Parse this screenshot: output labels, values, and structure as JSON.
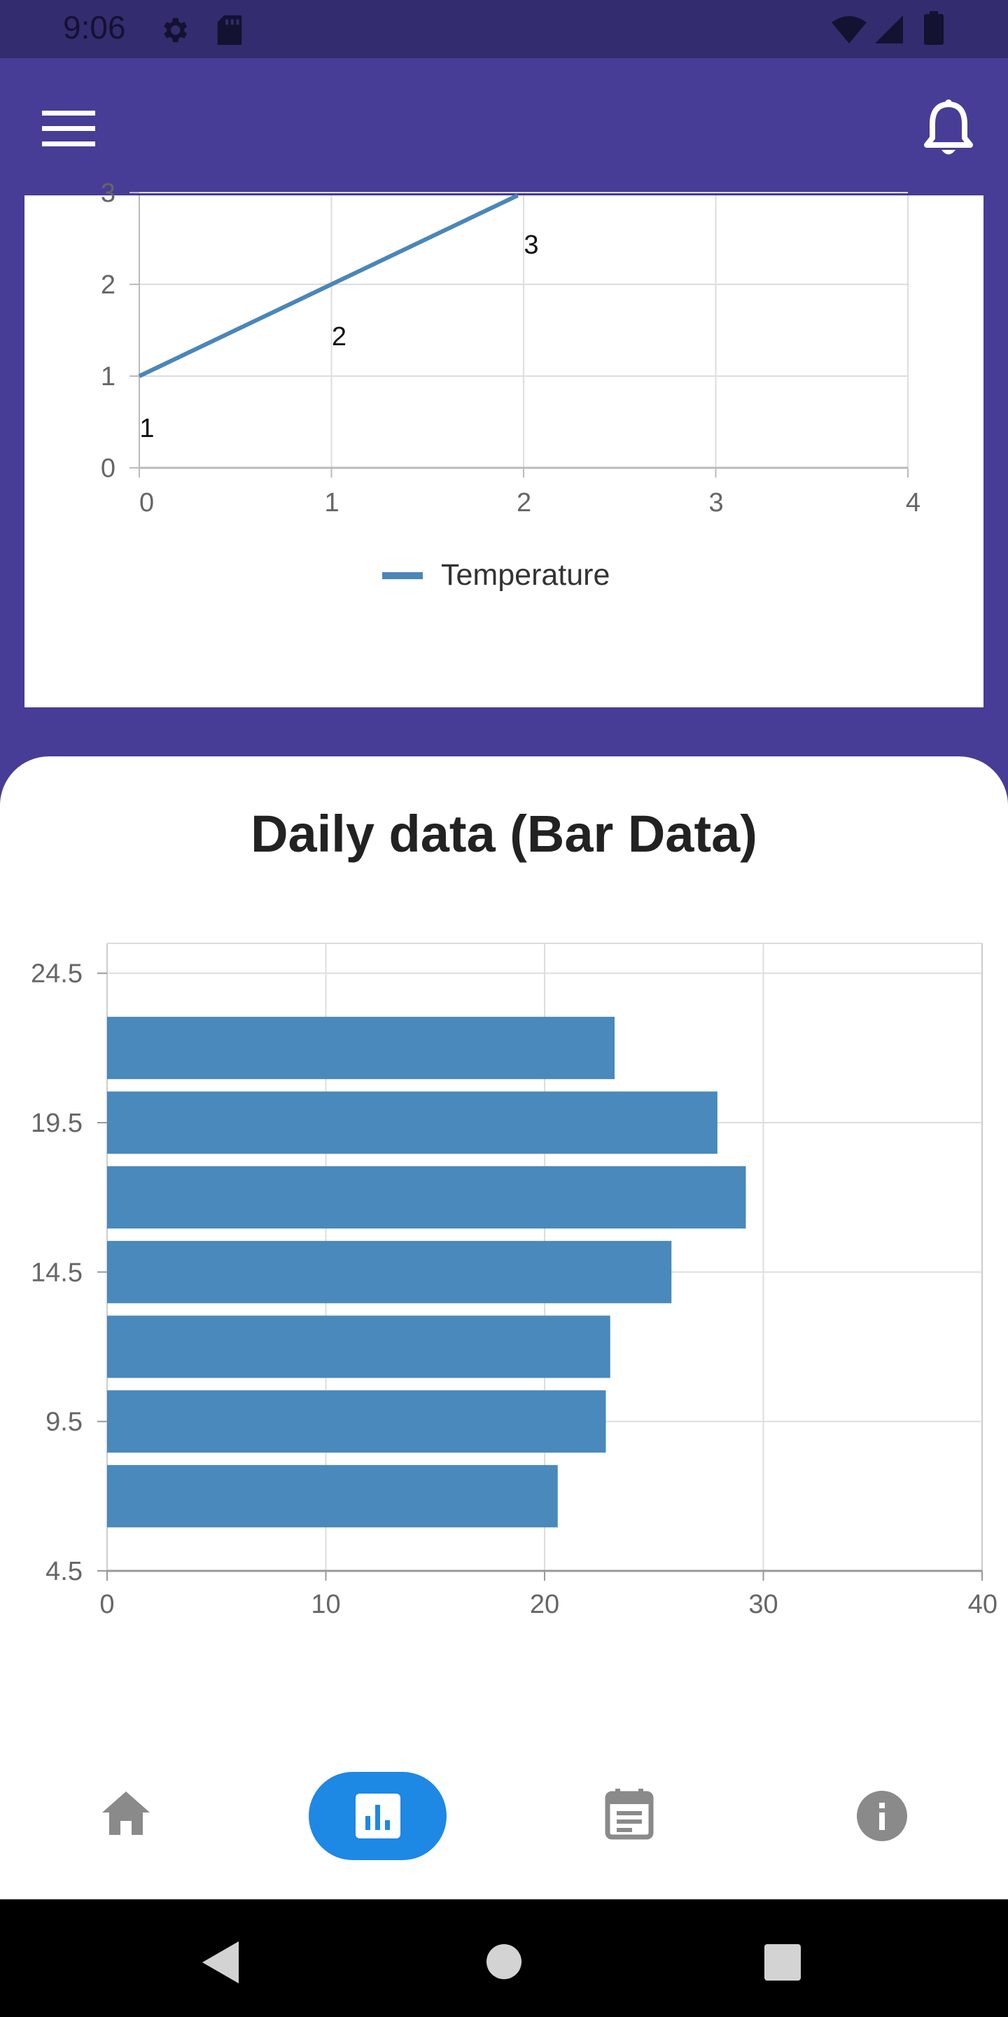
{
  "status_bar": {
    "time": "9:06",
    "icons": [
      "settings-icon",
      "sd-card-icon",
      "wifi-icon",
      "signal-icon",
      "battery-icon"
    ]
  },
  "app_bar": {
    "menu_icon": "menu-icon",
    "notification_icon": "bell-icon",
    "color": "#473d96"
  },
  "line_chart": {
    "legend": "Temperature"
  },
  "bar_chart_section": {
    "title": "Daily data (Bar Data)"
  },
  "chart_data": [
    {
      "type": "line",
      "series": [
        {
          "name": "Temperature",
          "x": [
            0,
            1,
            2
          ],
          "values": [
            1,
            2,
            3
          ],
          "color": "#4a86b8"
        }
      ],
      "data_labels": [
        "1",
        "2",
        "3"
      ],
      "x_ticks": [
        "0",
        "1",
        "2",
        "3",
        "4"
      ],
      "y_ticks": [
        "0",
        "1",
        "2",
        "3"
      ],
      "xlim": [
        0,
        4
      ],
      "ylim": [
        0,
        3
      ],
      "grid": true,
      "legend_position": "bottom"
    },
    {
      "type": "bar",
      "orientation": "horizontal",
      "categories": [
        "7",
        "9.5",
        "12",
        "14.5",
        "17",
        "19.5",
        "22"
      ],
      "values": [
        20.6,
        22.8,
        23,
        25.8,
        29.2,
        27.9,
        23.2
      ],
      "color": "#4a89bb",
      "x_ticks": [
        "0",
        "10",
        "20",
        "30",
        "40"
      ],
      "y_ticks": [
        "4.5",
        "9.5",
        "14.5",
        "19.5",
        "24.5"
      ],
      "xlim": [
        0,
        40
      ],
      "ylim": [
        4.5,
        25.5
      ],
      "grid": true
    }
  ],
  "bottom_nav": {
    "items": [
      {
        "icon": "home-icon",
        "active": false
      },
      {
        "icon": "bar-chart-icon",
        "active": true
      },
      {
        "icon": "calendar-icon",
        "active": false
      },
      {
        "icon": "info-icon",
        "active": false
      }
    ],
    "active_color": "#1e88e5"
  },
  "system_nav": {
    "icons": [
      "back-icon",
      "home-circle-icon",
      "recents-icon"
    ]
  }
}
